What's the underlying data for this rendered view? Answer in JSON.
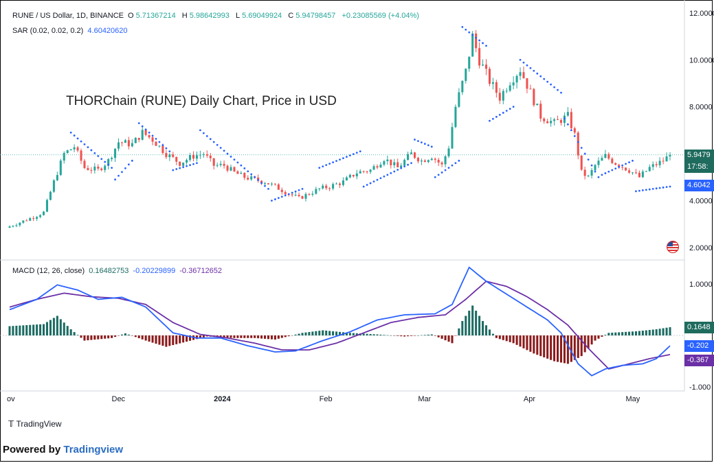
{
  "header": {
    "symbol": "RUNE / US Dollar, 1D, BINANCE",
    "open_label": "O",
    "open": "5.71367214",
    "high_label": "H",
    "high": "5.98642993",
    "low_label": "L",
    "low": "5.69049924",
    "close_label": "C",
    "close": "5.94798457",
    "change": "+0.23085569 (+4.04%)",
    "sar_label": "SAR (0.02, 0.02, 0.2)",
    "sar_value": "4.60420620",
    "macd_label": "MACD (12, 26, close)",
    "macd_hist": "0.16482753",
    "macd_line": "-0.20229899",
    "macd_signal": "-0.36712652"
  },
  "overlay_title": "THORChain (RUNE) Daily Chart, Price in USD",
  "price_tags": {
    "price": "5.9479",
    "countdown": "17:58:",
    "sar": "4.6042"
  },
  "macd_tags": {
    "hist": "0.1648",
    "macd": "-0.202",
    "signal": "-0.367"
  },
  "footer": {
    "logo_text": "TradingView",
    "powered_prefix": "Powered by ",
    "powered_brand": "Tradingview"
  },
  "colors": {
    "up": "#26a69a",
    "down": "#ef5350",
    "sar": "#2962ff",
    "macd": "#2962ff",
    "signal": "#6b2fa6",
    "hist_up": "#1c6b62",
    "hist_down": "#8b1a1a",
    "tag_green": "#1f6b5e"
  },
  "chart_data": [
    {
      "type": "candlestick",
      "title": "",
      "ylim": [
        1.5,
        12.2
      ],
      "yticks": [
        "12.0000",
        "10.0000",
        "8.0000",
        "4.0000",
        "2.0000"
      ],
      "ytick_values": [
        12,
        10,
        8,
        4,
        2
      ],
      "x_labels": [
        "ov",
        "Dec",
        "2024",
        "Feb",
        "Mar",
        "Apr",
        "May"
      ],
      "x_label_days": [
        0,
        32,
        62,
        93,
        122,
        153,
        183
      ],
      "days": 195,
      "close_keypoints": [
        [
          0,
          2.9
        ],
        [
          7,
          3.3
        ],
        [
          10,
          3.5
        ],
        [
          13,
          4.8
        ],
        [
          16,
          6.0
        ],
        [
          19,
          6.3
        ],
        [
          22,
          5.4
        ],
        [
          26,
          5.3
        ],
        [
          29,
          5.7
        ],
        [
          32,
          6.5
        ],
        [
          36,
          6.4
        ],
        [
          39,
          6.9
        ],
        [
          42,
          6.6
        ],
        [
          46,
          6.0
        ],
        [
          50,
          5.6
        ],
        [
          54,
          5.9
        ],
        [
          57,
          6.0
        ],
        [
          60,
          5.5
        ],
        [
          63,
          5.5
        ],
        [
          66,
          5.2
        ],
        [
          69,
          5.0
        ],
        [
          72,
          4.9
        ],
        [
          75,
          4.8
        ],
        [
          78,
          4.6
        ],
        [
          82,
          4.3
        ],
        [
          85,
          4.1
        ],
        [
          88,
          4.3
        ],
        [
          91,
          4.5
        ],
        [
          94,
          4.6
        ],
        [
          98,
          4.8
        ],
        [
          102,
          5.2
        ],
        [
          106,
          5.3
        ],
        [
          110,
          5.8
        ],
        [
          114,
          5.4
        ],
        [
          118,
          6.0
        ],
        [
          121,
          5.7
        ],
        [
          124,
          5.9
        ],
        [
          127,
          5.5
        ],
        [
          129,
          6.3
        ],
        [
          131,
          8.0
        ],
        [
          134,
          9.5
        ],
        [
          136,
          11.0
        ],
        [
          138,
          10.0
        ],
        [
          141,
          9.1
        ],
        [
          144,
          8.4
        ],
        [
          147,
          9.1
        ],
        [
          150,
          9.6
        ],
        [
          153,
          8.6
        ],
        [
          156,
          7.6
        ],
        [
          160,
          7.3
        ],
        [
          164,
          7.6
        ],
        [
          166,
          6.8
        ],
        [
          168,
          5.2
        ],
        [
          170,
          5.0
        ],
        [
          172,
          5.5
        ],
        [
          175,
          5.9
        ],
        [
          178,
          5.6
        ],
        [
          182,
          5.3
        ],
        [
          185,
          5.0
        ],
        [
          188,
          5.4
        ],
        [
          192,
          5.7
        ],
        [
          194,
          5.95
        ]
      ],
      "sar_segments": [
        [
          18,
          30,
          6.9,
          5.4
        ],
        [
          31,
          36,
          4.9,
          5.7
        ],
        [
          38,
          47,
          7.3,
          6.1
        ],
        [
          48,
          55,
          5.3,
          5.6
        ],
        [
          56,
          76,
          7.0,
          4.5
        ],
        [
          77,
          86,
          4.0,
          4.5
        ],
        [
          91,
          103,
          5.4,
          6.1
        ],
        [
          104,
          118,
          4.6,
          5.6
        ],
        [
          119,
          124,
          6.6,
          6.3
        ],
        [
          125,
          132,
          5.0,
          5.7
        ],
        [
          133,
          140,
          11.4,
          10.6
        ],
        [
          141,
          148,
          7.4,
          8.0
        ],
        [
          150,
          162,
          10.0,
          8.6
        ],
        [
          163,
          173,
          7.5,
          5.0
        ],
        [
          174,
          183,
          5.1,
          5.7
        ],
        [
          184,
          194,
          4.4,
          4.6
        ]
      ]
    },
    {
      "type": "macd",
      "ylim": [
        -1.05,
        1.45
      ],
      "yticks": [
        "1.0000",
        "-1.000"
      ],
      "ytick_values": [
        1.0,
        -1.0
      ],
      "macd_keypoints": [
        [
          0,
          0.5
        ],
        [
          8,
          0.7
        ],
        [
          14,
          0.98
        ],
        [
          20,
          0.88
        ],
        [
          26,
          0.7
        ],
        [
          33,
          0.74
        ],
        [
          40,
          0.55
        ],
        [
          48,
          0.05
        ],
        [
          55,
          -0.05
        ],
        [
          62,
          -0.05
        ],
        [
          70,
          -0.2
        ],
        [
          78,
          -0.32
        ],
        [
          84,
          -0.3
        ],
        [
          92,
          -0.1
        ],
        [
          100,
          0.07
        ],
        [
          108,
          0.3
        ],
        [
          116,
          0.4
        ],
        [
          125,
          0.42
        ],
        [
          130,
          0.6
        ],
        [
          135,
          1.32
        ],
        [
          140,
          1.05
        ],
        [
          146,
          0.8
        ],
        [
          152,
          0.55
        ],
        [
          158,
          0.3
        ],
        [
          162,
          0.05
        ],
        [
          167,
          -0.55
        ],
        [
          171,
          -0.78
        ],
        [
          175,
          -0.65
        ],
        [
          180,
          -0.58
        ],
        [
          186,
          -0.55
        ],
        [
          190,
          -0.45
        ],
        [
          194,
          -0.2
        ]
      ],
      "signal_keypoints": [
        [
          0,
          0.55
        ],
        [
          8,
          0.7
        ],
        [
          16,
          0.82
        ],
        [
          24,
          0.75
        ],
        [
          32,
          0.72
        ],
        [
          40,
          0.6
        ],
        [
          48,
          0.25
        ],
        [
          56,
          0.02
        ],
        [
          64,
          -0.05
        ],
        [
          72,
          -0.15
        ],
        [
          80,
          -0.28
        ],
        [
          88,
          -0.28
        ],
        [
          96,
          -0.15
        ],
        [
          104,
          0.05
        ],
        [
          112,
          0.25
        ],
        [
          120,
          0.35
        ],
        [
          128,
          0.4
        ],
        [
          134,
          0.7
        ],
        [
          140,
          1.05
        ],
        [
          146,
          0.95
        ],
        [
          152,
          0.75
        ],
        [
          158,
          0.5
        ],
        [
          164,
          0.2
        ],
        [
          170,
          -0.25
        ],
        [
          176,
          -0.65
        ],
        [
          182,
          -0.55
        ],
        [
          188,
          -0.45
        ],
        [
          194,
          -0.37
        ]
      ],
      "hist_keypoints": [
        [
          0,
          0.18
        ],
        [
          10,
          0.22
        ],
        [
          14,
          0.38
        ],
        [
          18,
          0.12
        ],
        [
          22,
          -0.1
        ],
        [
          30,
          -0.05
        ],
        [
          34,
          0.04
        ],
        [
          40,
          -0.1
        ],
        [
          46,
          -0.22
        ],
        [
          52,
          -0.12
        ],
        [
          58,
          -0.02
        ],
        [
          66,
          -0.05
        ],
        [
          72,
          -0.05
        ],
        [
          78,
          -0.08
        ],
        [
          86,
          0.05
        ],
        [
          92,
          0.1
        ],
        [
          100,
          0.05
        ],
        [
          108,
          0.02
        ],
        [
          116,
          -0.02
        ],
        [
          124,
          0.02
        ],
        [
          130,
          -0.15
        ],
        [
          133,
          0.28
        ],
        [
          136,
          0.58
        ],
        [
          139,
          0.28
        ],
        [
          143,
          -0.05
        ],
        [
          148,
          -0.15
        ],
        [
          154,
          -0.35
        ],
        [
          160,
          -0.5
        ],
        [
          164,
          -0.55
        ],
        [
          168,
          -0.4
        ],
        [
          172,
          -0.1
        ],
        [
          176,
          0.05
        ],
        [
          184,
          0.08
        ],
        [
          190,
          0.12
        ],
        [
          194,
          0.16
        ]
      ]
    }
  ]
}
